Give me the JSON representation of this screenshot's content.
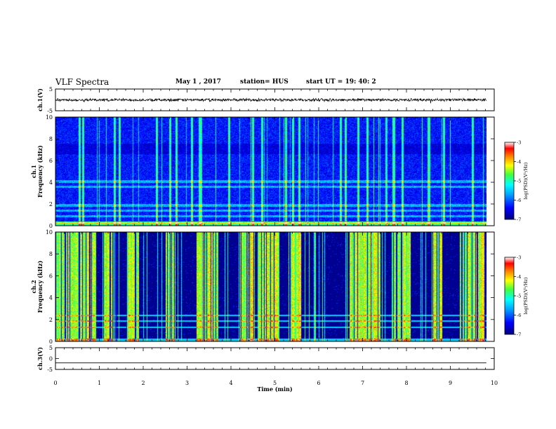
{
  "header": {
    "title": "VLF Spectra",
    "date": "May 1 , 2017",
    "station": "station= HUS",
    "start": "start UT = 19: 40: 2"
  },
  "chart_data": [
    {
      "type": "line",
      "panel": "ch1-waveform",
      "ylabel": "ch.1(V)",
      "ylim": [
        -5,
        5
      ],
      "yticks": [
        "5",
        "-5"
      ],
      "xlim": [
        0,
        10
      ],
      "trace_mean": 0,
      "trace_amplitude": 0.6
    },
    {
      "type": "heatmap",
      "panel": "ch1-spectrogram",
      "ylabel": "ch.1\nFrequency (kHz)",
      "ylim": [
        0,
        10
      ],
      "yticks": [
        "0",
        "2",
        "4",
        "6",
        "8",
        "10"
      ],
      "xlim": [
        0,
        9.82
      ],
      "colorbar": {
        "label": "log(PSD)(V²/Hz)",
        "range": [
          -7,
          -3
        ],
        "ticks": [
          "-3",
          "-4",
          "-5",
          "-6",
          "-7"
        ]
      },
      "bright_bursts_min": [
        0.55,
        0.62,
        1.35,
        1.45,
        2.3,
        2.6,
        2.75,
        3.1,
        3.3,
        3.95,
        4.5,
        4.7,
        5.25,
        5.4,
        5.55,
        6.5,
        6.6,
        6.9,
        7.1,
        7.7,
        7.9,
        8.5,
        8.85,
        9.5
      ]
    },
    {
      "type": "heatmap",
      "panel": "ch2-spectrogram",
      "ylabel": "ch.2\nFrequency (kHz)",
      "ylim": [
        0,
        10
      ],
      "yticks": [
        "0",
        "2",
        "4",
        "6",
        "8",
        "10"
      ],
      "xlim": [
        0,
        9.82
      ],
      "colorbar": {
        "label": "log(PSD)(V²/Hz)",
        "range": [
          -7,
          -3
        ],
        "ticks": [
          "-3",
          "-4",
          "-5",
          "-6",
          "-7"
        ]
      },
      "active_intervals_min": [
        [
          0,
          0.9
        ],
        [
          1.1,
          1.4
        ],
        [
          1.6,
          1.9
        ],
        [
          2.5,
          2.75
        ],
        [
          3.2,
          3.7
        ],
        [
          4.2,
          4.5
        ],
        [
          4.6,
          5.1
        ],
        [
          5.3,
          5.6
        ],
        [
          6.7,
          7.4
        ],
        [
          7.7,
          8.1
        ],
        [
          8.6,
          8.8
        ],
        [
          9.2,
          9.8
        ]
      ]
    },
    {
      "type": "line",
      "panel": "ch3-waveform",
      "ylabel": "ch.3(V)",
      "ylim": [
        -5,
        5
      ],
      "yticks": [
        "5",
        "0",
        "-5"
      ],
      "xlim": [
        0,
        10
      ],
      "trace_mean": -2,
      "trace_amplitude": 0,
      "xlabel": "Time (min)",
      "xticks": [
        "0",
        "1",
        "2",
        "3",
        "4",
        "5",
        "6",
        "7",
        "8",
        "9",
        "10"
      ]
    }
  ],
  "colors": {
    "colormap": [
      "#000080",
      "#0000ff",
      "#00a0ff",
      "#00ffff",
      "#40ff40",
      "#ffff00",
      "#ff8000",
      "#ff0000",
      "#ffffff"
    ]
  }
}
